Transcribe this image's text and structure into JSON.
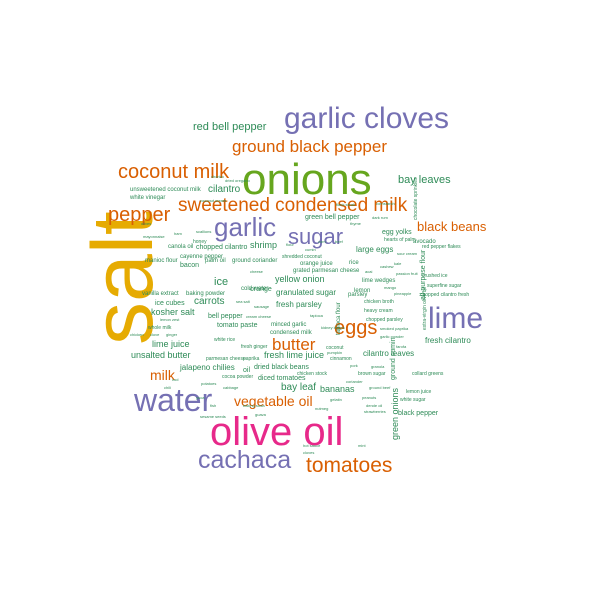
{
  "palette": {
    "green": "#2e8b57",
    "orange": "#d95f02",
    "purple": "#7570b3",
    "magenta": "#e7298a",
    "olive": "#66a61e",
    "gold": "#e6ab02"
  },
  "words": [
    {
      "text": "salt",
      "color": "gold"
    },
    {
      "text": "onions",
      "color": "olive"
    },
    {
      "text": "olive oil",
      "color": "magenta"
    },
    {
      "text": "garlic cloves",
      "color": "purple"
    },
    {
      "text": "water",
      "color": "purple"
    },
    {
      "text": "lime",
      "color": "purple"
    },
    {
      "text": "cachaca",
      "color": "purple"
    },
    {
      "text": "tomatoes",
      "color": "orange"
    },
    {
      "text": "sweetened condensed milk",
      "color": "orange"
    },
    {
      "text": "garlic",
      "color": "purple"
    },
    {
      "text": "sugar",
      "color": "purple"
    },
    {
      "text": "coconut milk",
      "color": "orange"
    },
    {
      "text": "pepper",
      "color": "orange"
    },
    {
      "text": "ground black pepper",
      "color": "orange"
    },
    {
      "text": "eggs",
      "color": "orange"
    },
    {
      "text": "butter",
      "color": "orange"
    },
    {
      "text": "vegetable oil",
      "color": "orange"
    },
    {
      "text": "milk",
      "color": "orange"
    },
    {
      "text": "black beans",
      "color": "orange"
    },
    {
      "text": "red bell pepper",
      "color": "green"
    },
    {
      "text": "bay leaves",
      "color": "green"
    },
    {
      "text": "cilantro",
      "color": "green"
    },
    {
      "text": "shrimp",
      "color": "green"
    },
    {
      "text": "carrots",
      "color": "green"
    },
    {
      "text": "ice",
      "color": "green"
    },
    {
      "text": "yellow onion",
      "color": "green"
    },
    {
      "text": "kosher salt",
      "color": "green"
    },
    {
      "text": "lime juice",
      "color": "green"
    },
    {
      "text": "unsalted butter",
      "color": "green"
    },
    {
      "text": "jalapeno chilies",
      "color": "green"
    },
    {
      "text": "fresh lime juice",
      "color": "green"
    },
    {
      "text": "bay leaf",
      "color": "green"
    },
    {
      "text": "bananas",
      "color": "green"
    },
    {
      "text": "green onions",
      "color": "green"
    },
    {
      "text": "granulated sugar",
      "color": "green"
    },
    {
      "text": "fresh parsley",
      "color": "green"
    },
    {
      "text": "tomato paste",
      "color": "green"
    },
    {
      "text": "dried black beans",
      "color": "green"
    },
    {
      "text": "diced tomatoes",
      "color": "green"
    },
    {
      "text": "bacon",
      "color": "green"
    },
    {
      "text": "ice cubes",
      "color": "green"
    },
    {
      "text": "bell pepper",
      "color": "green"
    },
    {
      "text": "large eggs",
      "color": "green"
    },
    {
      "text": "egg yolks",
      "color": "green"
    },
    {
      "text": "cilantro leaves",
      "color": "green"
    },
    {
      "text": "fresh cilantro",
      "color": "green"
    },
    {
      "text": "black pepper",
      "color": "green"
    },
    {
      "text": "all-purpose flour",
      "color": "green"
    },
    {
      "text": "ground cumin",
      "color": "green"
    },
    {
      "text": "green bell pepper",
      "color": "green"
    },
    {
      "text": "chopped cilantro",
      "color": "green"
    },
    {
      "text": "cayenne pepper",
      "color": "green"
    },
    {
      "text": "ground coriander",
      "color": "green"
    },
    {
      "text": "orange juice",
      "color": "green"
    },
    {
      "text": "orange",
      "color": "green"
    },
    {
      "text": "grated parmesan cheese",
      "color": "green"
    },
    {
      "text": "minced garlic",
      "color": "green"
    },
    {
      "text": "condensed milk",
      "color": "green"
    },
    {
      "text": "lemon",
      "color": "green"
    },
    {
      "text": "parsley",
      "color": "green"
    },
    {
      "text": "tapioca flour",
      "color": "green"
    },
    {
      "text": "baking powder",
      "color": "green"
    },
    {
      "text": "vanilla extract",
      "color": "green"
    },
    {
      "text": "unsweetened coconut milk",
      "color": "green"
    },
    {
      "text": "white vinegar",
      "color": "green"
    },
    {
      "text": "canola oil",
      "color": "green"
    },
    {
      "text": "manioc flour",
      "color": "green"
    },
    {
      "text": "palm oil",
      "color": "green"
    },
    {
      "text": "honey",
      "color": "green"
    },
    {
      "text": "paprika",
      "color": "green"
    },
    {
      "text": "oil",
      "color": "green"
    },
    {
      "text": "cold water",
      "color": "green"
    },
    {
      "text": "rice",
      "color": "green"
    },
    {
      "text": "lime wedges",
      "color": "green"
    },
    {
      "text": "avocado",
      "color": "green"
    },
    {
      "text": "red pepper flakes",
      "color": "green"
    },
    {
      "text": "crushed ice",
      "color": "green"
    },
    {
      "text": "superfine sugar",
      "color": "green"
    },
    {
      "text": "chopped cilantro fresh",
      "color": "green"
    },
    {
      "text": "chocolate sprinkles",
      "color": "green"
    },
    {
      "text": "extra-virgin olive oil",
      "color": "green"
    },
    {
      "text": "collard greens",
      "color": "green"
    },
    {
      "text": "white sugar",
      "color": "green"
    },
    {
      "text": "lemon juice",
      "color": "green"
    },
    {
      "text": "brown sugar",
      "color": "green"
    },
    {
      "text": "chicken stock",
      "color": "green"
    },
    {
      "text": "parmesan cheese",
      "color": "green"
    },
    {
      "text": "cocoa powder",
      "color": "green"
    },
    {
      "text": "whole milk",
      "color": "green"
    },
    {
      "text": "white rice",
      "color": "green"
    },
    {
      "text": "coconut",
      "color": "green"
    },
    {
      "text": "cinnamon",
      "color": "green"
    },
    {
      "text": "fresh ginger",
      "color": "green"
    },
    {
      "text": "shredded coconut",
      "color": "green"
    },
    {
      "text": "hearts of palm",
      "color": "green"
    },
    {
      "text": "chicken broth",
      "color": "green"
    },
    {
      "text": "heavy cream",
      "color": "green"
    },
    {
      "text": "chopped parsley",
      "color": "green"
    },
    {
      "text": "smoked paprika",
      "color": "green"
    },
    {
      "text": "garlic powder",
      "color": "green"
    },
    {
      "text": "cheese",
      "color": "green"
    },
    {
      "text": "flour",
      "color": "green"
    },
    {
      "text": "corn",
      "color": "green"
    },
    {
      "text": "beef",
      "color": "green"
    },
    {
      "text": "sausage",
      "color": "green"
    },
    {
      "text": "cream cheese",
      "color": "green"
    },
    {
      "text": "lemon zest",
      "color": "green"
    },
    {
      "text": "clove",
      "color": "green"
    },
    {
      "text": "ginger",
      "color": "green"
    },
    {
      "text": "chicken",
      "color": "green"
    },
    {
      "text": "sea salt",
      "color": "green"
    },
    {
      "text": "cumin",
      "color": "green"
    },
    {
      "text": "thyme",
      "color": "green"
    },
    {
      "text": "dark rum",
      "color": "green"
    },
    {
      "text": "cashew",
      "color": "green"
    },
    {
      "text": "kale",
      "color": "green"
    },
    {
      "text": "mango",
      "color": "green"
    },
    {
      "text": "passion fruit",
      "color": "green"
    },
    {
      "text": "pineapple",
      "color": "green"
    },
    {
      "text": "farofa",
      "color": "green"
    },
    {
      "text": "pork",
      "color": "green"
    },
    {
      "text": "ground beef",
      "color": "green"
    },
    {
      "text": "peanuts",
      "color": "green"
    },
    {
      "text": "dende oil",
      "color": "green"
    },
    {
      "text": "gelatin",
      "color": "green"
    },
    {
      "text": "nutmeg",
      "color": "green"
    },
    {
      "text": "baking soda",
      "color": "green"
    },
    {
      "text": "guava",
      "color": "green"
    },
    {
      "text": "yuca",
      "color": "green"
    },
    {
      "text": "potatoes",
      "color": "green"
    },
    {
      "text": "cod",
      "color": "green"
    },
    {
      "text": "scallions",
      "color": "green"
    },
    {
      "text": "olives",
      "color": "green"
    },
    {
      "text": "mayonnaise",
      "color": "green"
    },
    {
      "text": "ham",
      "color": "green"
    },
    {
      "text": "granola",
      "color": "green"
    },
    {
      "text": "acai",
      "color": "green"
    },
    {
      "text": "sour cream",
      "color": "green"
    },
    {
      "text": "cornstarch",
      "color": "green"
    },
    {
      "text": "flank steak",
      "color": "green"
    },
    {
      "text": "chorizo",
      "color": "green"
    },
    {
      "text": "dried oregano",
      "color": "green"
    },
    {
      "text": "coconut cream",
      "color": "green"
    },
    {
      "text": "chili",
      "color": "green"
    },
    {
      "text": "cabbage",
      "color": "green"
    },
    {
      "text": "hot sauce",
      "color": "green"
    },
    {
      "text": "cloves",
      "color": "green"
    },
    {
      "text": "mint",
      "color": "green"
    },
    {
      "text": "pumpkin",
      "color": "green"
    },
    {
      "text": "fish",
      "color": "green"
    },
    {
      "text": "sesame seeds",
      "color": "green"
    },
    {
      "text": "strawberries",
      "color": "green"
    },
    {
      "text": "tapioca",
      "color": "green"
    },
    {
      "text": "kidney beans",
      "color": "green"
    },
    {
      "text": "coriander",
      "color": "green"
    }
  ]
}
